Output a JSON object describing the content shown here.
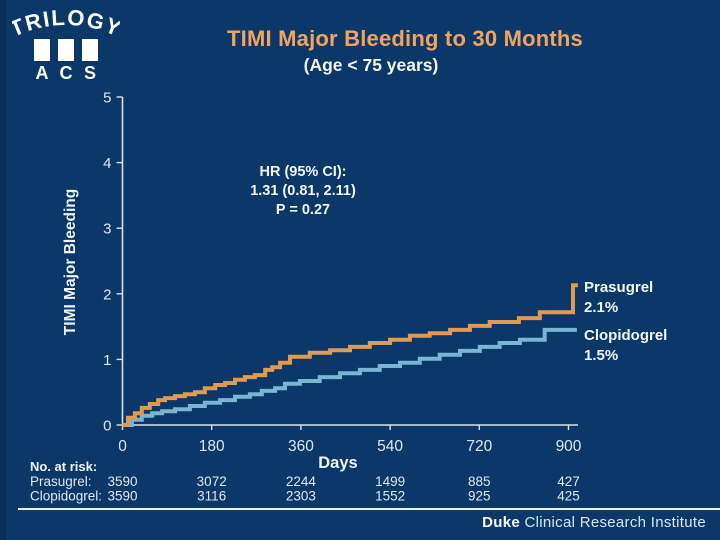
{
  "logo": {
    "title": "TRILOGY",
    "acs_letters": [
      "A",
      "C",
      "S"
    ]
  },
  "header": {
    "title": "TIMI Major Bleeding to 30 Months",
    "subtitle": "(Age < 75 years)"
  },
  "chart_data": {
    "type": "line",
    "step": true,
    "title": "TIMI Major Bleeding to 30 Months (Age < 75 years)",
    "xlabel": "Days",
    "ylabel": "TIMI Major Bleeding",
    "xlim": [
      0,
      920
    ],
    "ylim": [
      0,
      5
    ],
    "xticks": [
      0,
      180,
      360,
      540,
      720,
      900
    ],
    "yticks": [
      0,
      1,
      2,
      3,
      4,
      5
    ],
    "grid": false,
    "legend_position": "right-of-curve-ends",
    "annotation": [
      "HR (95% CI):",
      "1.31 (0.81, 2.11)",
      "P = 0.27"
    ],
    "series": [
      {
        "name": "Clopidogrel",
        "end_label": "1.5%",
        "end_value": 1.5,
        "color": "#7ab5d3",
        "points": [
          [
            0,
            0
          ],
          [
            19,
            0.08
          ],
          [
            39,
            0.14
          ],
          [
            60,
            0.18
          ],
          [
            80,
            0.21
          ],
          [
            106,
            0.24
          ],
          [
            136,
            0.29
          ],
          [
            166,
            0.34
          ],
          [
            197,
            0.38
          ],
          [
            227,
            0.43
          ],
          [
            257,
            0.47
          ],
          [
            281,
            0.52
          ],
          [
            308,
            0.56
          ],
          [
            328,
            0.63
          ],
          [
            358,
            0.67
          ],
          [
            398,
            0.73
          ],
          [
            439,
            0.79
          ],
          [
            479,
            0.84
          ],
          [
            519,
            0.9
          ],
          [
            560,
            0.95
          ],
          [
            600,
            1.01
          ],
          [
            640,
            1.07
          ],
          [
            681,
            1.13
          ],
          [
            721,
            1.19
          ],
          [
            761,
            1.25
          ],
          [
            802,
            1.3
          ],
          [
            852,
            1.45
          ],
          [
            917,
            1.45
          ]
        ]
      },
      {
        "name": "Prasugrel",
        "end_label": "2.1%",
        "end_value": 2.1,
        "color": "#e19a54",
        "points": [
          [
            0,
            0
          ],
          [
            11,
            0.11
          ],
          [
            25,
            0.18
          ],
          [
            39,
            0.26
          ],
          [
            55,
            0.32
          ],
          [
            72,
            0.38
          ],
          [
            86,
            0.41
          ],
          [
            106,
            0.44
          ],
          [
            126,
            0.47
          ],
          [
            146,
            0.5
          ],
          [
            166,
            0.56
          ],
          [
            187,
            0.61
          ],
          [
            207,
            0.64
          ],
          [
            227,
            0.69
          ],
          [
            247,
            0.73
          ],
          [
            267,
            0.76
          ],
          [
            288,
            0.84
          ],
          [
            302,
            0.88
          ],
          [
            318,
            0.95
          ],
          [
            338,
            1.04
          ],
          [
            378,
            1.1
          ],
          [
            419,
            1.14
          ],
          [
            459,
            1.19
          ],
          [
            499,
            1.25
          ],
          [
            540,
            1.3
          ],
          [
            580,
            1.36
          ],
          [
            620,
            1.4
          ],
          [
            661,
            1.45
          ],
          [
            701,
            1.51
          ],
          [
            741,
            1.57
          ],
          [
            800,
            1.63
          ],
          [
            842,
            1.72
          ],
          [
            909,
            2.13
          ],
          [
            919,
            2.13
          ]
        ]
      }
    ]
  },
  "at_risk": {
    "heading": "No. at risk:",
    "rows": [
      {
        "label": "Prasugrel:",
        "values": [
          "3590",
          "3072",
          "2244",
          "1499",
          "885",
          "427"
        ]
      },
      {
        "label": "Clopidogrel:",
        "values": [
          "3590",
          "3116",
          "2303",
          "1552",
          "925",
          "425"
        ]
      }
    ]
  },
  "footer": {
    "brand": "Duke",
    "text": " Clinical Research Institute"
  },
  "colors": {
    "background": "#0b3869",
    "title_orange": "#f2a45f",
    "prasugrel_curve": "#e19a54",
    "clopidogrel_curve": "#7ab5d3",
    "axis": "#d8e2ea",
    "text_white": "#f4f7fa"
  }
}
